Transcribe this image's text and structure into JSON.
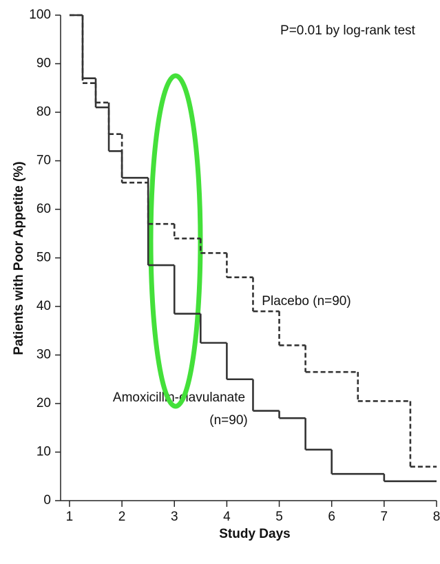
{
  "chart_data": {
    "type": "step",
    "xlabel": "Study Days",
    "ylabel": "Patients with Poor Appetite (%)",
    "xlim": [
      0.83,
      8
    ],
    "ylim": [
      0,
      100
    ],
    "xticks": [
      1,
      2,
      3,
      4,
      5,
      6,
      7,
      8
    ],
    "yticks": [
      0,
      10,
      20,
      30,
      40,
      50,
      60,
      70,
      80,
      90,
      100
    ],
    "annotations": [
      "P=0.01 by log-rank test",
      "Placebo (n=90)",
      "Amoxicillin-clavulanate",
      "(n=90)"
    ],
    "series": [
      {
        "color": "#333333",
        "dash": false,
        "x": [
          1,
          1.25,
          1.5,
          1.75,
          2,
          2.5,
          3,
          3.5,
          4,
          4.5,
          5,
          5.5,
          6,
          7,
          8
        ],
        "values": [
          100,
          87,
          81,
          72,
          66.5,
          48.5,
          38.5,
          32.5,
          25,
          18.5,
          17,
          10.5,
          5.5,
          4,
          4
        ]
      },
      {
        "color": "#333333",
        "dash": true,
        "x": [
          1,
          1.25,
          1.5,
          1.75,
          2,
          2.5,
          3,
          3.5,
          4,
          4.5,
          5,
          5.5,
          6.5,
          7.5,
          8
        ],
        "values": [
          100,
          86,
          82,
          75.5,
          65.5,
          57,
          54,
          51,
          46,
          39,
          32,
          26.5,
          20.5,
          7,
          7
        ]
      }
    ]
  }
}
